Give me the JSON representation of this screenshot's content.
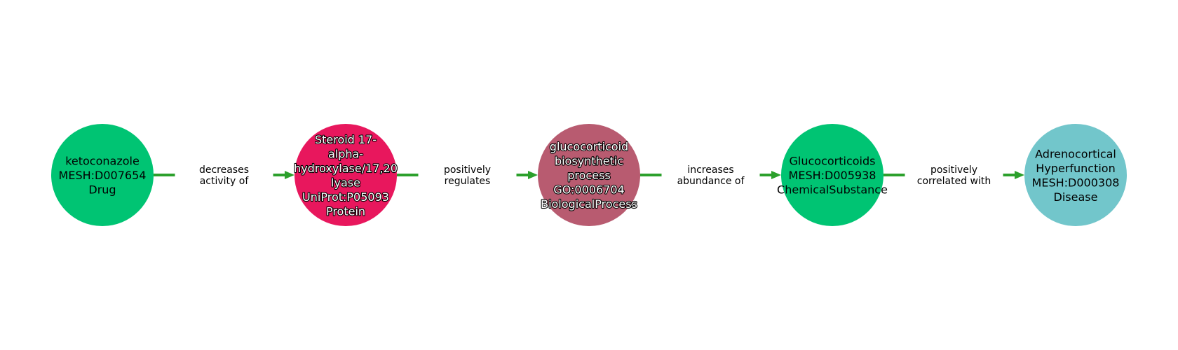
{
  "colors": {
    "edge": "#2ca02c"
  },
  "nodes": [
    {
      "id": "ketoconazole",
      "lines": [
        "ketoconazole",
        "MESH:D007654",
        "Drug"
      ],
      "color": "#00c473",
      "text_style": "dark"
    },
    {
      "id": "steroid",
      "lines": [
        "Steroid 17-",
        "alpha-",
        "hydroxylase/17,20",
        "lyase",
        "UniProt:P05093",
        "Protein"
      ],
      "color": "#e8175d",
      "text_style": "light"
    },
    {
      "id": "glucocorticoid-biosynthesis",
      "lines": [
        "glucocorticoid",
        "biosynthetic",
        "process",
        "GO:0006704",
        "BiologicalProcess"
      ],
      "color": "#b85b70",
      "text_style": "light"
    },
    {
      "id": "glucocorticoids",
      "lines": [
        "Glucocorticoids",
        "MESH:D005938",
        "ChemicalSubstance"
      ],
      "color": "#00c473",
      "text_style": "dark"
    },
    {
      "id": "adrenocortical",
      "lines": [
        "Adrenocortical",
        "Hyperfunction",
        "MESH:D000308",
        "Disease"
      ],
      "color": "#72c6cb",
      "text_style": "dark"
    }
  ],
  "edges": [
    {
      "from": 0,
      "to": 1,
      "label": [
        "decreases",
        "activity of"
      ]
    },
    {
      "from": 1,
      "to": 2,
      "label": [
        "positively",
        "regulates"
      ]
    },
    {
      "from": 2,
      "to": 3,
      "label": [
        "increases",
        "abundance of"
      ]
    },
    {
      "from": 3,
      "to": 4,
      "label": [
        "positively",
        "correlated with"
      ]
    }
  ]
}
